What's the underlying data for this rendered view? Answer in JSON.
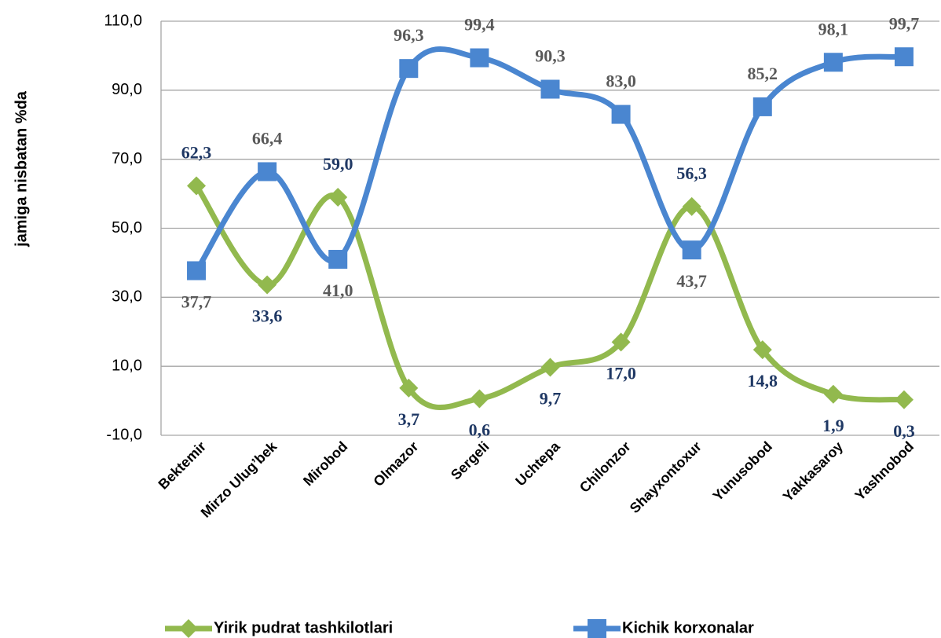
{
  "chart_data": {
    "type": "line",
    "y_label": "jamiga nisbatan %da",
    "categories": [
      "Bektemir",
      "Mirzo Ulug’bek",
      "Mirobod",
      "Olmazor",
      "Sergeli",
      "Uchtepa",
      "Chilonzor",
      "Shayxontoxur",
      "Yunusobod",
      "Yakkasaroy",
      "Yashnobod"
    ],
    "series": [
      {
        "name": "Yirik pudrat tashkilotlari",
        "color": "#92b94e",
        "marker": "diamond",
        "label_color": "#1f3864",
        "values": [
          62.3,
          33.6,
          59.0,
          3.7,
          0.6,
          9.7,
          17.0,
          56.3,
          14.8,
          1.9,
          0.3
        ],
        "value_labels": [
          "62,3",
          "33,6",
          "59,0",
          "3,7",
          "0,6",
          "9,7",
          "17,0",
          "56,3",
          "14,8",
          "1,9",
          "0,3"
        ]
      },
      {
        "name": "Kichik korxonalar",
        "color": "#4a86d0",
        "marker": "square",
        "label_color": "#595959",
        "values": [
          37.7,
          66.4,
          41.0,
          96.3,
          99.4,
          90.3,
          83.0,
          43.7,
          85.2,
          98.1,
          99.7
        ],
        "value_labels": [
          "37,7",
          "66,4",
          "41,0",
          "96,3",
          "99,4",
          "90,3",
          "83,0",
          "43,7",
          "85,2",
          "98,1",
          "99,7"
        ]
      }
    ],
    "ylim": [
      -10,
      110
    ],
    "yticks": [
      {
        "value": -10,
        "label": "-10,0"
      },
      {
        "value": 10,
        "label": "10,0"
      },
      {
        "value": 30,
        "label": "30,0"
      },
      {
        "value": 50,
        "label": "50,0"
      },
      {
        "value": 70,
        "label": "70,0"
      },
      {
        "value": 90,
        "label": "90,0"
      },
      {
        "value": 110,
        "label": "110,0"
      }
    ],
    "grid": true,
    "smooth": true,
    "legend": "bottom"
  }
}
